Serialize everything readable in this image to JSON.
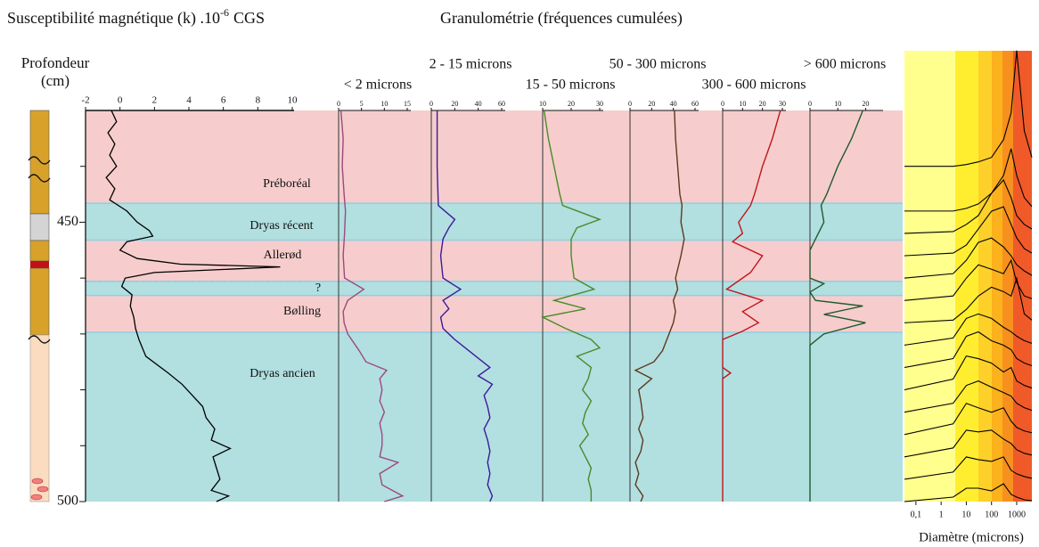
{
  "header": {
    "granulometry_title": "Granulométrie (fréquences cumulées)"
  },
  "zones": [
    {
      "label": "Préboréal",
      "top": 430,
      "bottom": 446.6,
      "color": "#f6cdcc"
    },
    {
      "label": "Dryas récent",
      "top": 446.6,
      "bottom": 453.2,
      "color": "#b2dfe0"
    },
    {
      "label": "Allerød",
      "top": 453.2,
      "bottom": 460.6,
      "color": "#f6cdcc"
    },
    {
      "label": "?",
      "top": 460.6,
      "bottom": 463.1,
      "color": "#b2dfe0"
    },
    {
      "label": "Bølling",
      "top": 463.1,
      "bottom": 469.7,
      "color": "#f6cdcc"
    },
    {
      "label": "Dryas ancien",
      "top": 469.7,
      "bottom": 500,
      "color": "#b2dfe0"
    }
  ],
  "chart_data": [
    {
      "type": "line",
      "title": "Susceptibilité magnétique (k) .10",
      "title_superscript": "-6",
      "title_suffix": "CGS",
      "ylabel": [
        "Profondeur",
        "(cm)"
      ],
      "ylim": [
        430,
        500
      ],
      "yticks": [
        450,
        500
      ],
      "minor_yticks": [
        440,
        460,
        470,
        480,
        490
      ],
      "xlim": [
        -2,
        10
      ],
      "xticks": [
        -2,
        0,
        2,
        4,
        6,
        8,
        10
      ],
      "color": "#000000",
      "depth": [
        430,
        432,
        434,
        436,
        438,
        440,
        442,
        444,
        446,
        448,
        450,
        451.5,
        452.5,
        453.5,
        455,
        456.5,
        457.5,
        458,
        459,
        460,
        461.5,
        463,
        465,
        467,
        469,
        471,
        474,
        477,
        479,
        481,
        483,
        485,
        487,
        489,
        490.5,
        492,
        494,
        496,
        498,
        499,
        500
      ],
      "values": [
        -0.5,
        -0.2,
        -0.7,
        -0.3,
        -0.6,
        -0.2,
        -0.8,
        -0.3,
        -0.6,
        0.4,
        1.0,
        1.7,
        1.9,
        0.4,
        0.0,
        1.0,
        3.5,
        9.3,
        2.0,
        0.3,
        0.1,
        0.7,
        0.6,
        0.8,
        0.9,
        1.1,
        1.5,
        2.8,
        3.6,
        4.2,
        4.8,
        5.0,
        5.5,
        5.3,
        6.4,
        5.4,
        5.6,
        5.8,
        5.3,
        6.3,
        5.6
      ]
    },
    {
      "type": "line",
      "title": "< 2 microns",
      "xlim": [
        0,
        15
      ],
      "xticks": [
        0,
        5,
        10,
        15
      ],
      "color": "#9b4a7f",
      "depth": [
        430,
        435,
        440,
        445,
        448,
        452,
        456,
        460,
        462,
        464,
        466,
        468,
        470,
        473,
        475,
        476.5,
        478,
        480,
        482,
        484,
        486,
        488,
        490,
        492,
        493,
        495,
        497,
        499,
        500
      ],
      "values": [
        0.5,
        1.0,
        0.8,
        1.2,
        1.5,
        1.3,
        1.0,
        1.3,
        5.5,
        2.0,
        1.0,
        1.2,
        2.0,
        4.5,
        6.0,
        10.5,
        9.0,
        9.5,
        9.0,
        10.0,
        9.0,
        9.5,
        9.5,
        9.0,
        13.0,
        9.0,
        9.5,
        14.0,
        10.0
      ]
    },
    {
      "type": "line",
      "title": "2 - 15 microns",
      "xlim": [
        0,
        60
      ],
      "xticks": [
        0,
        20,
        40,
        60
      ],
      "color": "#3b1a9c",
      "depth": [
        430,
        440,
        447,
        449.5,
        451,
        453,
        456,
        460,
        462,
        464,
        465.5,
        467,
        469,
        471,
        474,
        476,
        477.5,
        479,
        481,
        483,
        485,
        487,
        489,
        491,
        493,
        495,
        497,
        499,
        500
      ],
      "values": [
        5,
        5,
        6,
        20,
        15,
        10,
        8,
        10,
        25,
        10,
        15,
        8,
        10,
        20,
        38,
        50,
        40,
        52,
        45,
        48,
        50,
        45,
        48,
        50,
        48,
        50,
        48,
        52,
        50
      ]
    },
    {
      "type": "line",
      "title": "15 - 50 microns",
      "xlim": [
        10,
        30
      ],
      "xticks": [
        10,
        20,
        30
      ],
      "color": "#4a8a2a",
      "depth": [
        430,
        435,
        440,
        445,
        447,
        449.5,
        451,
        453,
        456,
        460,
        462,
        464,
        465.5,
        467,
        469,
        471,
        472.5,
        474,
        476,
        478,
        480,
        482,
        484,
        486,
        488,
        490,
        492,
        494,
        496,
        498,
        500
      ],
      "values": [
        10.5,
        12,
        14,
        16,
        17,
        30,
        22,
        20,
        20,
        21,
        28,
        14,
        25,
        10,
        18,
        27,
        30,
        22,
        27,
        26,
        24,
        27,
        25,
        24,
        26,
        23,
        25,
        27,
        26,
        27,
        27
      ]
    },
    {
      "type": "line",
      "title": "50 - 300 microns",
      "xlim": [
        0,
        60
      ],
      "xticks": [
        0,
        20,
        40,
        60
      ],
      "color": "#5c3a1e",
      "depth": [
        430,
        435,
        440,
        445,
        447,
        450,
        453,
        456,
        460,
        462,
        464,
        466,
        468,
        470,
        473,
        475,
        476.5,
        478,
        480,
        482,
        485,
        487,
        489,
        491,
        493,
        495,
        497,
        499,
        500
      ],
      "values": [
        41,
        42,
        44,
        46,
        48,
        47,
        50,
        47,
        42,
        44,
        40,
        42,
        40,
        36,
        30,
        22,
        5,
        20,
        8,
        10,
        12,
        8,
        12,
        10,
        5,
        8,
        5,
        12,
        10
      ]
    },
    {
      "type": "line",
      "title": "300 - 600 microns",
      "xlim": [
        0,
        30
      ],
      "xticks": [
        0,
        10,
        20,
        30
      ],
      "color": "#c0161e",
      "depth": [
        430,
        435,
        440,
        445,
        447,
        450,
        452,
        453.5,
        456,
        459,
        462,
        464,
        466,
        468,
        469.5,
        471,
        476,
        477,
        478,
        500
      ],
      "values": [
        29,
        25,
        20,
        16,
        14,
        8,
        10,
        5,
        20,
        14,
        2,
        20,
        10,
        18,
        10,
        0,
        0,
        4,
        0,
        0
      ]
    },
    {
      "type": "line",
      "title": "> 600 microns",
      "xlim": [
        0,
        25
      ],
      "xticks": [
        0,
        10,
        20
      ],
      "color": "#1f5a2e",
      "depth": [
        430,
        435,
        440,
        445,
        447,
        450,
        453,
        455,
        460,
        461,
        462.5,
        464,
        465,
        466.5,
        468,
        470,
        472,
        500
      ],
      "values": [
        19,
        15,
        10,
        6,
        4,
        5,
        2,
        0,
        0,
        5,
        0,
        2,
        19,
        5,
        20,
        5,
        0,
        0
      ]
    },
    {
      "type": "profiles",
      "xlabel": "Diamètre (microns)",
      "log_x": true,
      "xlim": [
        0.035,
        4000
      ],
      "xticks": [
        {
          "value": 0.1,
          "label": "0,1"
        },
        1,
        10,
        100,
        1000
      ],
      "color": "#000000",
      "x": [
        0.035,
        3,
        10,
        30,
        100,
        300,
        600,
        1000,
        2000,
        4000
      ],
      "series": [
        {
          "depth": 440,
          "values": [
            0,
            0,
            2,
            5,
            10,
            30,
            60,
            130,
            40,
            10
          ]
        },
        {
          "depth": 448,
          "values": [
            0,
            0,
            3,
            8,
            20,
            40,
            70,
            40,
            15,
            5
          ]
        },
        {
          "depth": 452,
          "values": [
            0,
            2,
            10,
            20,
            45,
            60,
            40,
            20,
            10,
            5
          ]
        },
        {
          "depth": 456,
          "values": [
            0,
            3,
            12,
            30,
            50,
            55,
            35,
            20,
            8,
            3
          ]
        },
        {
          "depth": 460,
          "values": [
            0,
            5,
            20,
            40,
            45,
            35,
            25,
            15,
            8,
            3
          ]
        },
        {
          "depth": 464,
          "values": [
            0,
            5,
            25,
            40,
            35,
            30,
            45,
            20,
            5,
            2
          ]
        },
        {
          "depth": 468,
          "values": [
            0,
            3,
            15,
            30,
            40,
            35,
            30,
            50,
            10,
            3
          ]
        },
        {
          "depth": 472,
          "values": [
            0,
            8,
            30,
            35,
            30,
            20,
            15,
            10,
            5,
            2
          ]
        },
        {
          "depth": 476,
          "values": [
            0,
            10,
            35,
            40,
            30,
            25,
            20,
            10,
            5,
            2
          ]
        },
        {
          "depth": 480,
          "values": [
            0,
            12,
            38,
            35,
            30,
            20,
            25,
            10,
            5,
            2
          ]
        },
        {
          "depth": 484,
          "values": [
            0,
            10,
            30,
            35,
            28,
            22,
            18,
            10,
            5,
            2
          ]
        },
        {
          "depth": 488,
          "values": [
            0,
            12,
            35,
            30,
            25,
            30,
            15,
            8,
            4,
            2
          ]
        },
        {
          "depth": 492,
          "values": [
            0,
            10,
            30,
            28,
            30,
            20,
            15,
            8,
            4,
            2
          ]
        },
        {
          "depth": 496,
          "values": [
            0,
            8,
            25,
            22,
            20,
            25,
            10,
            6,
            3,
            1
          ]
        },
        {
          "depth": 500,
          "values": [
            0,
            5,
            15,
            15,
            12,
            20,
            8,
            5,
            2,
            1
          ]
        }
      ]
    }
  ]
}
